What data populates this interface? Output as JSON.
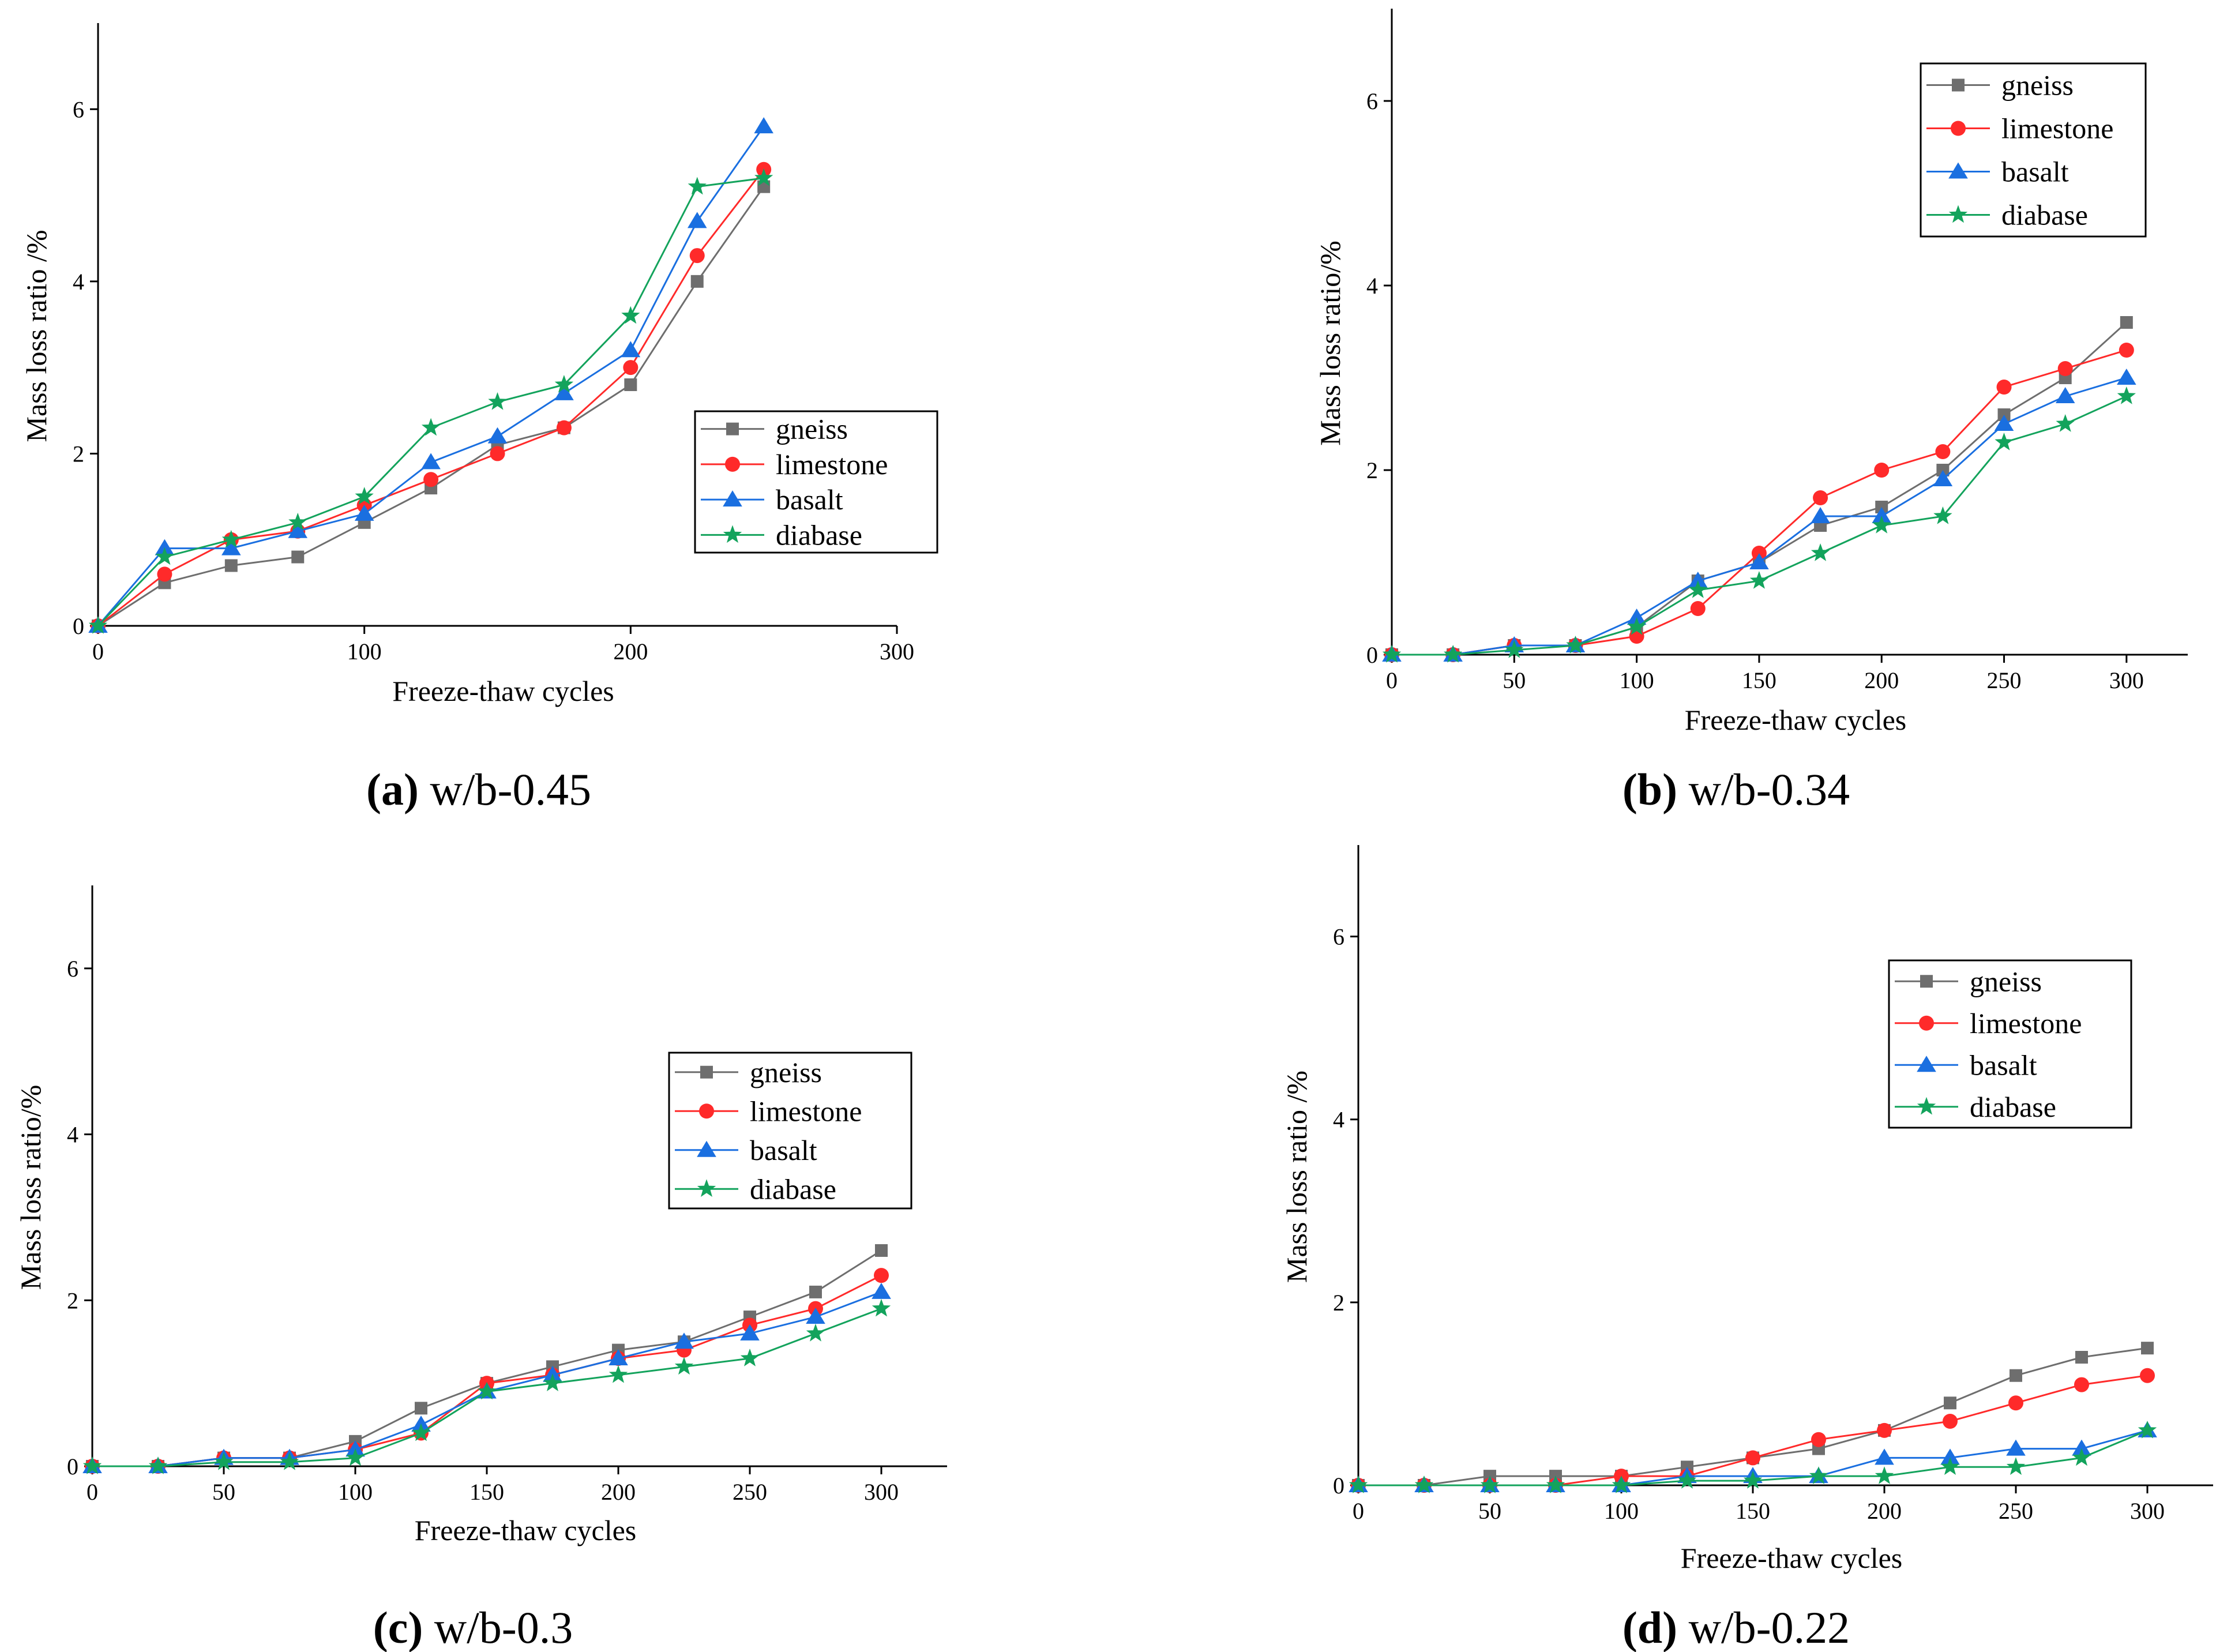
{
  "colors": {
    "gneiss": "#6e6e6e",
    "limestone": "#ff2a2a",
    "basalt": "#1a6fe0",
    "diabase": "#13a35c"
  },
  "chart_data": [
    {
      "type": "line",
      "caption_letter": "(a)",
      "caption_text": " w/b-0.45",
      "xlabel": "Freeze-thaw cycles",
      "ylabel": "Mass loss ratio /%",
      "xlim": [
        0,
        300
      ],
      "ylim": [
        0,
        7
      ],
      "xticks": [
        0,
        100,
        200,
        300
      ],
      "yticks": [
        0,
        2,
        4,
        6
      ],
      "legend": "center-right",
      "x": [
        0,
        25,
        50,
        75,
        100,
        125,
        150,
        175,
        200,
        225,
        250
      ],
      "series": [
        {
          "name": "gneiss",
          "marker": "square",
          "values": [
            0,
            0.5,
            0.7,
            0.8,
            1.2,
            1.6,
            2.1,
            2.3,
            2.8,
            4.0,
            5.1
          ]
        },
        {
          "name": "limestone",
          "marker": "circle",
          "values": [
            0,
            0.6,
            1.0,
            1.1,
            1.4,
            1.7,
            2.0,
            2.3,
            3.0,
            4.3,
            5.3
          ]
        },
        {
          "name": "basalt",
          "marker": "triangle",
          "values": [
            0,
            0.9,
            0.9,
            1.1,
            1.3,
            1.9,
            2.2,
            2.7,
            3.2,
            4.7,
            5.8
          ]
        },
        {
          "name": "diabase",
          "marker": "star",
          "values": [
            0,
            0.8,
            1.0,
            1.2,
            1.5,
            2.3,
            2.6,
            2.8,
            3.6,
            5.1,
            5.2
          ]
        }
      ]
    },
    {
      "type": "line",
      "caption_letter": "(b)",
      "caption_text": " w/b-0.34",
      "xlabel": "Freeze-thaw cycles",
      "ylabel": "Mass loss ratio/%",
      "xlim": [
        0,
        325
      ],
      "ylim": [
        0,
        7
      ],
      "xticks": [
        0,
        50,
        100,
        150,
        200,
        250,
        300
      ],
      "yticks": [
        0,
        2,
        4,
        6
      ],
      "legend": "top-right",
      "x": [
        0,
        25,
        50,
        75,
        100,
        125,
        150,
        175,
        200,
        225,
        250,
        275,
        300
      ],
      "series": [
        {
          "name": "gneiss",
          "marker": "square",
          "values": [
            0,
            0,
            0.1,
            0.1,
            0.3,
            0.8,
            1.0,
            1.4,
            1.6,
            2.0,
            2.6,
            3.0,
            3.6
          ]
        },
        {
          "name": "limestone",
          "marker": "circle",
          "values": [
            0,
            0,
            0.1,
            0.1,
            0.2,
            0.5,
            1.1,
            1.7,
            2.0,
            2.2,
            2.9,
            3.1,
            3.3
          ]
        },
        {
          "name": "basalt",
          "marker": "triangle",
          "values": [
            0,
            0,
            0.1,
            0.1,
            0.4,
            0.8,
            1.0,
            1.5,
            1.5,
            1.9,
            2.5,
            2.8,
            3.0
          ]
        },
        {
          "name": "diabase",
          "marker": "star",
          "values": [
            0,
            0,
            0.05,
            0.1,
            0.3,
            0.7,
            0.8,
            1.1,
            1.4,
            1.5,
            2.3,
            2.5,
            2.8
          ]
        }
      ]
    },
    {
      "type": "line",
      "caption_letter": "(c)",
      "caption_text": " w/b-0.3",
      "xlabel": "Freeze-thaw cycles",
      "ylabel": "Mass loss ratio/%",
      "xlim": [
        0,
        325
      ],
      "ylim": [
        0,
        7
      ],
      "xticks": [
        0,
        50,
        100,
        150,
        200,
        250,
        300
      ],
      "yticks": [
        0,
        2,
        4,
        6
      ],
      "legend": "center-right",
      "x": [
        0,
        25,
        50,
        75,
        100,
        125,
        150,
        175,
        200,
        225,
        250,
        275,
        300
      ],
      "series": [
        {
          "name": "gneiss",
          "marker": "square",
          "values": [
            0,
            0,
            0.1,
            0.1,
            0.3,
            0.7,
            1.0,
            1.2,
            1.4,
            1.5,
            1.8,
            2.1,
            2.6
          ]
        },
        {
          "name": "limestone",
          "marker": "circle",
          "values": [
            0,
            0,
            0.1,
            0.1,
            0.2,
            0.4,
            1.0,
            1.1,
            1.3,
            1.4,
            1.7,
            1.9,
            2.3
          ]
        },
        {
          "name": "basalt",
          "marker": "triangle",
          "values": [
            0,
            0,
            0.1,
            0.1,
            0.2,
            0.5,
            0.9,
            1.1,
            1.3,
            1.5,
            1.6,
            1.8,
            2.1
          ]
        },
        {
          "name": "diabase",
          "marker": "star",
          "values": [
            0,
            0,
            0.05,
            0.05,
            0.1,
            0.4,
            0.9,
            1.0,
            1.1,
            1.2,
            1.3,
            1.6,
            1.9
          ]
        }
      ]
    },
    {
      "type": "line",
      "caption_letter": "(d)",
      "caption_text": " w/b-0.22",
      "xlabel": "Freeze-thaw cycles",
      "ylabel": "Mass loss ratio /%",
      "xlim": [
        0,
        325
      ],
      "ylim": [
        0,
        7
      ],
      "xticks": [
        0,
        50,
        100,
        150,
        200,
        250,
        300
      ],
      "yticks": [
        0,
        2,
        4,
        6
      ],
      "legend": "top-right",
      "x": [
        0,
        25,
        50,
        75,
        100,
        125,
        150,
        175,
        200,
        225,
        250,
        275,
        300
      ],
      "series": [
        {
          "name": "gneiss",
          "marker": "square",
          "values": [
            0,
            0,
            0.1,
            0.1,
            0.1,
            0.2,
            0.3,
            0.4,
            0.6,
            0.9,
            1.2,
            1.4,
            1.5
          ]
        },
        {
          "name": "limestone",
          "marker": "circle",
          "values": [
            0,
            0,
            0,
            0,
            0.1,
            0.1,
            0.3,
            0.5,
            0.6,
            0.7,
            0.9,
            1.1,
            1.2
          ]
        },
        {
          "name": "basalt",
          "marker": "triangle",
          "values": [
            0,
            0,
            0,
            0,
            0,
            0.1,
            0.1,
            0.1,
            0.3,
            0.3,
            0.4,
            0.4,
            0.6
          ]
        },
        {
          "name": "diabase",
          "marker": "star",
          "values": [
            0,
            0,
            0,
            0,
            0,
            0.05,
            0.05,
            0.1,
            0.1,
            0.2,
            0.2,
            0.3,
            0.6
          ]
        }
      ]
    }
  ]
}
